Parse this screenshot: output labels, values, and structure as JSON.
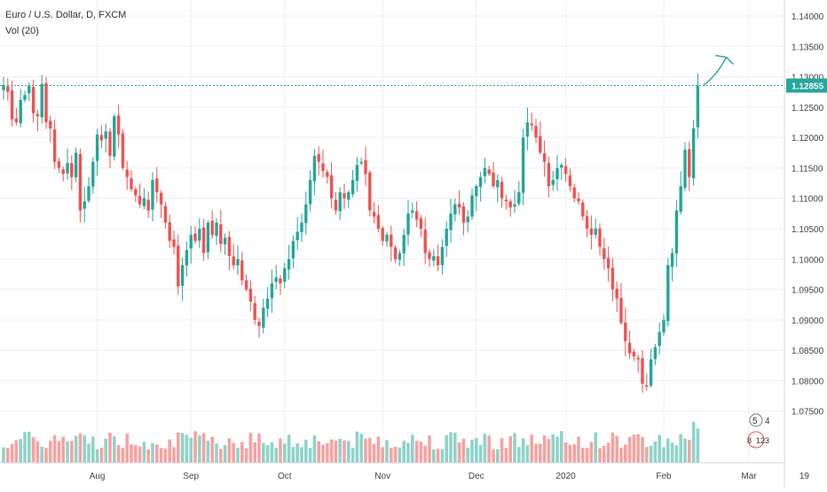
{
  "header": {
    "symbol_line": "Euro / U.S. Dollar, D, FXCM",
    "volume_line": "Vol (20)"
  },
  "colors": {
    "up": "#26a69a",
    "down": "#ef5350",
    "up_vol": "#8fd3c9",
    "down_vol": "#f5a3a1",
    "grid": "#eef0f3",
    "price_line": "#26a69a",
    "axis_text": "#444444",
    "drawing": "#26a69a"
  },
  "annotation": {
    "icon": "tradingview-events-icon",
    "text": [
      "5",
      "4",
      "8",
      "123"
    ]
  },
  "chart_data": {
    "type": "candlestick",
    "title": "Euro / U.S. Dollar, D, FXCM",
    "yaxis": {
      "min": 1.07,
      "max": 1.14,
      "ticks": [
        "1.14000",
        "1.13500",
        "1.13000",
        "1.12500",
        "1.12000",
        "1.11500",
        "1.11000",
        "1.10500",
        "1.10000",
        "1.09500",
        "1.09000",
        "1.08500",
        "1.08000",
        "1.07500"
      ]
    },
    "xaxis": {
      "labels": [
        {
          "text": "Aug",
          "i": 22
        },
        {
          "text": "Sep",
          "i": 44
        },
        {
          "text": "Oct",
          "i": 66
        },
        {
          "text": "Nov",
          "i": 89
        },
        {
          "text": "Dec",
          "i": 111
        },
        {
          "text": "2020",
          "i": 132
        },
        {
          "text": "Feb",
          "i": 155
        },
        {
          "text": "Mar",
          "i": 175
        },
        {
          "text": "19",
          "i": 188
        }
      ]
    },
    "last_price": "1.12855",
    "volume_indicator": "Vol (20)",
    "closes": [
      1.1286,
      1.1275,
      1.123,
      1.1225,
      1.1262,
      1.127,
      1.1285,
      1.124,
      1.1235,
      1.1288,
      1.1225,
      1.1215,
      1.116,
      1.115,
      1.114,
      1.1158,
      1.1135,
      1.1175,
      1.108,
      1.1095,
      1.112,
      1.116,
      1.1205,
      1.1195,
      1.121,
      1.117,
      1.1235,
      1.1205,
      1.115,
      1.1135,
      1.1115,
      1.1105,
      1.109,
      1.11,
      1.108,
      1.113,
      1.111,
      1.109,
      1.106,
      1.103,
      1.102,
      1.0955,
      1.099,
      1.1015,
      1.104,
      1.103,
      1.105,
      1.101,
      1.106,
      1.104,
      1.106,
      1.1025,
      1.1035,
      1.1005,
      1.099,
      1.1,
      1.0965,
      1.095,
      1.093,
      1.09,
      1.089,
      1.092,
      1.0935,
      1.096,
      1.097,
      1.096,
      1.0985,
      1.1,
      1.103,
      1.1045,
      1.106,
      1.109,
      1.113,
      1.117,
      1.116,
      1.1145,
      1.1135,
      1.11,
      1.108,
      1.111,
      1.11,
      1.111,
      1.113,
      1.1155,
      1.116,
      1.114,
      1.108,
      1.107,
      1.105,
      1.103,
      1.104,
      1.102,
      1.1,
      1.101,
      1.104,
      1.1075,
      1.108,
      1.1065,
      1.105,
      1.101,
      1.1,
      1.1005,
      1.099,
      1.102,
      1.105,
      1.1075,
      1.109,
      1.1085,
      1.106,
      1.107,
      1.1105,
      1.112,
      1.1135,
      1.115,
      1.114,
      1.112,
      1.113,
      1.11,
      1.1095,
      1.1085,
      1.109,
      1.111,
      1.12,
      1.1225,
      1.122,
      1.12,
      1.1175,
      1.116,
      1.112,
      1.113,
      1.115,
      1.1155,
      1.114,
      1.112,
      1.11,
      1.1095,
      1.107,
      1.105,
      1.104,
      1.105,
      1.102,
      1.1,
      1.0985,
      1.095,
      1.0935,
      1.0895,
      1.0865,
      1.0845,
      1.084,
      1.0835,
      1.0795,
      1.079,
      1.0835,
      1.0855,
      1.088,
      1.09,
      1.099,
      1.101,
      1.108,
      1.112,
      1.118,
      1.1135,
      1.1215,
      1.1285
    ],
    "volume_max": 100
  }
}
